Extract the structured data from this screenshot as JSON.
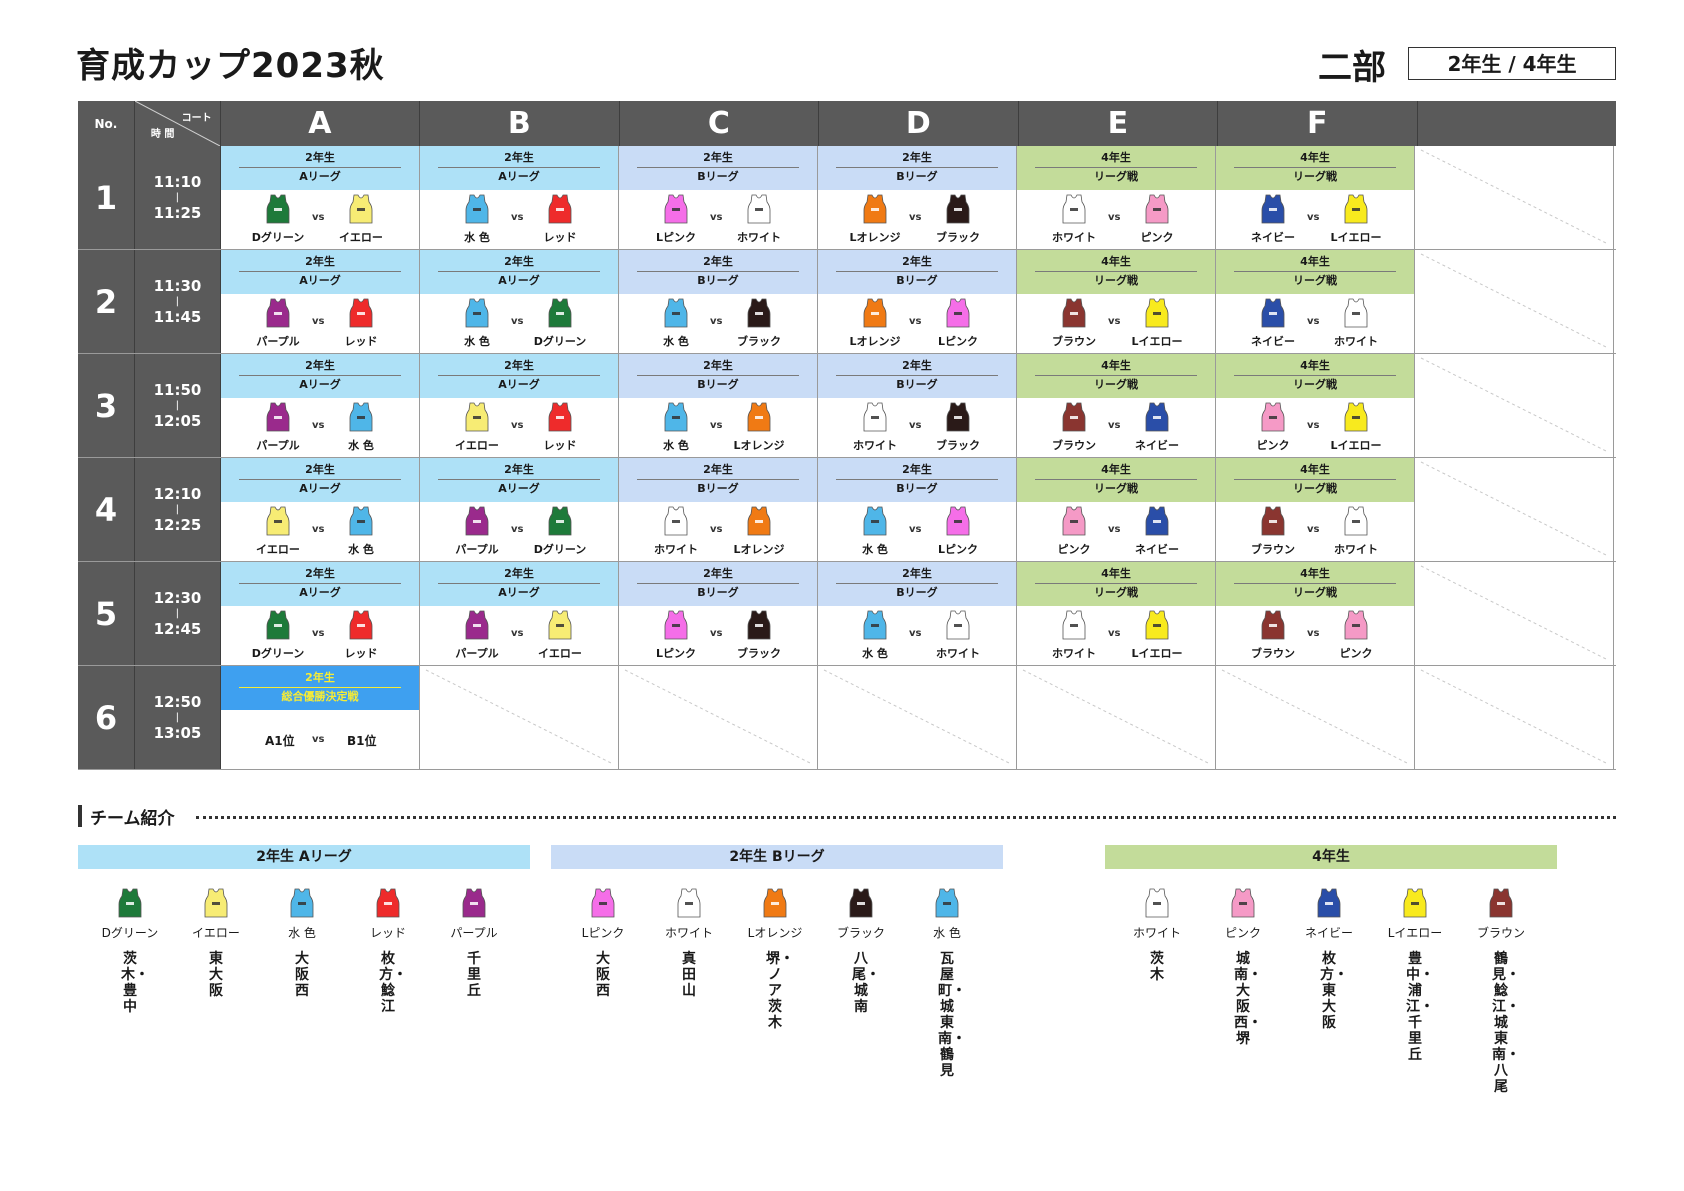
{
  "title": "育成カップ2023秋",
  "division": "二部",
  "grades": "2年生 / 4年生",
  "colors": {
    "header_gray": "#5a5a5a",
    "league_a_bg": "#aee1f7",
    "league_b_bg": "#c9dcf6",
    "grade4_bg": "#c3dc9a",
    "final_bg": "#3ea0f0",
    "final_text": "#f6ec35"
  },
  "jerseys": {
    "Dグリーン": "#1e7a3a",
    "イエロー": "#f7ec74",
    "水 色": "#4fb6e8",
    "レッド": "#ee2b2b",
    "パープル": "#9a2a8c",
    "Lピンク": "#f56ee8",
    "ホワイト": "#ffffff",
    "Lオレンジ": "#f07a14",
    "ブラック": "#2a1a18",
    "ピンク": "#f59ac6",
    "ネイビー": "#2a4ea8",
    "Lイエロー": "#f8ea1e",
    "ブラウン": "#8a3530"
  },
  "schedule": {
    "header": {
      "no": "No.",
      "court": "コート",
      "time": "時 間",
      "courts": [
        "A",
        "B",
        "C",
        "D",
        "E",
        "F"
      ]
    },
    "rows": [
      {
        "no": "1",
        "start": "11:10",
        "sep": "|",
        "end": "11:25",
        "matches": [
          {
            "grade": "2年生",
            "league": "Aリーグ",
            "style": "a",
            "left": "Dグリーン",
            "vs": "vs",
            "right": "イエロー"
          },
          {
            "grade": "2年生",
            "league": "Aリーグ",
            "style": "a",
            "left": "水 色",
            "vs": "vs",
            "right": "レッド"
          },
          {
            "grade": "2年生",
            "league": "Bリーグ",
            "style": "b",
            "left": "Lピンク",
            "vs": "vs",
            "right": "ホワイト"
          },
          {
            "grade": "2年生",
            "league": "Bリーグ",
            "style": "b",
            "left": "Lオレンジ",
            "vs": "vs",
            "right": "ブラック"
          },
          {
            "grade": "4年生",
            "league": "リーグ戦",
            "style": "y",
            "left": "ホワイト",
            "vs": "vs",
            "right": "ピンク"
          },
          {
            "grade": "4年生",
            "league": "リーグ戦",
            "style": "y",
            "left": "ネイビー",
            "vs": "vs",
            "right": "Lイエロー"
          }
        ]
      },
      {
        "no": "2",
        "start": "11:30",
        "sep": "|",
        "end": "11:45",
        "matches": [
          {
            "grade": "2年生",
            "league": "Aリーグ",
            "style": "a",
            "left": "パープル",
            "vs": "vs",
            "right": "レッド"
          },
          {
            "grade": "2年生",
            "league": "Aリーグ",
            "style": "a",
            "left": "水 色",
            "vs": "vs",
            "right": "Dグリーン"
          },
          {
            "grade": "2年生",
            "league": "Bリーグ",
            "style": "b",
            "left": "水 色",
            "vs": "vs",
            "right": "ブラック"
          },
          {
            "grade": "2年生",
            "league": "Bリーグ",
            "style": "b",
            "left": "Lオレンジ",
            "vs": "vs",
            "right": "Lピンク"
          },
          {
            "grade": "4年生",
            "league": "リーグ戦",
            "style": "y",
            "left": "ブラウン",
            "vs": "vs",
            "right": "Lイエロー"
          },
          {
            "grade": "4年生",
            "league": "リーグ戦",
            "style": "y",
            "left": "ネイビー",
            "vs": "vs",
            "right": "ホワイト"
          }
        ]
      },
      {
        "no": "3",
        "start": "11:50",
        "sep": "|",
        "end": "12:05",
        "matches": [
          {
            "grade": "2年生",
            "league": "Aリーグ",
            "style": "a",
            "left": "パープル",
            "vs": "vs",
            "right": "水 色"
          },
          {
            "grade": "2年生",
            "league": "Aリーグ",
            "style": "a",
            "left": "イエロー",
            "vs": "vs",
            "right": "レッド"
          },
          {
            "grade": "2年生",
            "league": "Bリーグ",
            "style": "b",
            "left": "水 色",
            "vs": "vs",
            "right": "Lオレンジ"
          },
          {
            "grade": "2年生",
            "league": "Bリーグ",
            "style": "b",
            "left": "ホワイト",
            "vs": "vs",
            "right": "ブラック"
          },
          {
            "grade": "4年生",
            "league": "リーグ戦",
            "style": "y",
            "left": "ブラウン",
            "vs": "vs",
            "right": "ネイビー"
          },
          {
            "grade": "4年生",
            "league": "リーグ戦",
            "style": "y",
            "left": "ピンク",
            "vs": "vs",
            "right": "Lイエロー"
          }
        ]
      },
      {
        "no": "4",
        "start": "12:10",
        "sep": "|",
        "end": "12:25",
        "matches": [
          {
            "grade": "2年生",
            "league": "Aリーグ",
            "style": "a",
            "left": "イエロー",
            "vs": "vs",
            "right": "水 色"
          },
          {
            "grade": "2年生",
            "league": "Aリーグ",
            "style": "a",
            "left": "パープル",
            "vs": "vs",
            "right": "Dグリーン"
          },
          {
            "grade": "2年生",
            "league": "Bリーグ",
            "style": "b",
            "left": "ホワイト",
            "vs": "vs",
            "right": "Lオレンジ"
          },
          {
            "grade": "2年生",
            "league": "Bリーグ",
            "style": "b",
            "left": "水 色",
            "vs": "vs",
            "right": "Lピンク"
          },
          {
            "grade": "4年生",
            "league": "リーグ戦",
            "style": "y",
            "left": "ピンク",
            "vs": "vs",
            "right": "ネイビー"
          },
          {
            "grade": "4年生",
            "league": "リーグ戦",
            "style": "y",
            "left": "ブラウン",
            "vs": "vs",
            "right": "ホワイト"
          }
        ]
      },
      {
        "no": "5",
        "start": "12:30",
        "sep": "|",
        "end": "12:45",
        "matches": [
          {
            "grade": "2年生",
            "league": "Aリーグ",
            "style": "a",
            "left": "Dグリーン",
            "vs": "vs",
            "right": "レッド"
          },
          {
            "grade": "2年生",
            "league": "Aリーグ",
            "style": "a",
            "left": "パープル",
            "vs": "vs",
            "right": "イエロー"
          },
          {
            "grade": "2年生",
            "league": "Bリーグ",
            "style": "b",
            "left": "Lピンク",
            "vs": "vs",
            "right": "ブラック"
          },
          {
            "grade": "2年生",
            "league": "Bリーグ",
            "style": "b",
            "left": "水 色",
            "vs": "vs",
            "right": "ホワイト"
          },
          {
            "grade": "4年生",
            "league": "リーグ戦",
            "style": "y",
            "left": "ホワイト",
            "vs": "vs",
            "right": "Lイエロー"
          },
          {
            "grade": "4年生",
            "league": "リーグ戦",
            "style": "y",
            "left": "ブラウン",
            "vs": "vs",
            "right": "ピンク"
          }
        ]
      },
      {
        "no": "6",
        "start": "12:50",
        "sep": "|",
        "end": "13:05",
        "matches": [
          {
            "grade": "2年生",
            "league": "総合優勝決定戦",
            "style": "final",
            "left": "A1位",
            "vs": "vs",
            "right": "B1位"
          }
        ]
      }
    ]
  },
  "team_intro": {
    "title": "チーム紹介",
    "groups": [
      {
        "label": "2年生  Aリーグ",
        "style": "a",
        "teams": [
          {
            "jersey": "Dグリーン",
            "schools": "茨木・豊中"
          },
          {
            "jersey": "イエロー",
            "schools": "東大阪"
          },
          {
            "jersey": "水 色",
            "schools": "大阪西"
          },
          {
            "jersey": "レッド",
            "schools": "枚方・鯰江"
          },
          {
            "jersey": "パープル",
            "schools": "千里丘"
          }
        ]
      },
      {
        "label": "2年生  Bリーグ",
        "style": "b",
        "teams": [
          {
            "jersey": "Lピンク",
            "schools": "大阪西"
          },
          {
            "jersey": "ホワイト",
            "schools": "真田山"
          },
          {
            "jersey": "Lオレンジ",
            "schools": "堺・ノア茨木"
          },
          {
            "jersey": "ブラック",
            "schools": "八尾・城南"
          },
          {
            "jersey": "水 色",
            "schools": "瓦屋町・城東南・鶴見"
          }
        ]
      },
      {
        "label": "4年生",
        "style": "y",
        "teams": [
          {
            "jersey": "ホワイト",
            "schools": "茨木"
          },
          {
            "jersey": "ピンク",
            "schools": "城南・大阪西・堺"
          },
          {
            "jersey": "ネイビー",
            "schools": "枚方・東大阪"
          },
          {
            "jersey": "Lイエロー",
            "schools": "豊中・浦江・千里丘"
          },
          {
            "jersey": "ブラウン",
            "schools": "鶴見・鯰江・城東南・八尾"
          }
        ]
      }
    ]
  }
}
